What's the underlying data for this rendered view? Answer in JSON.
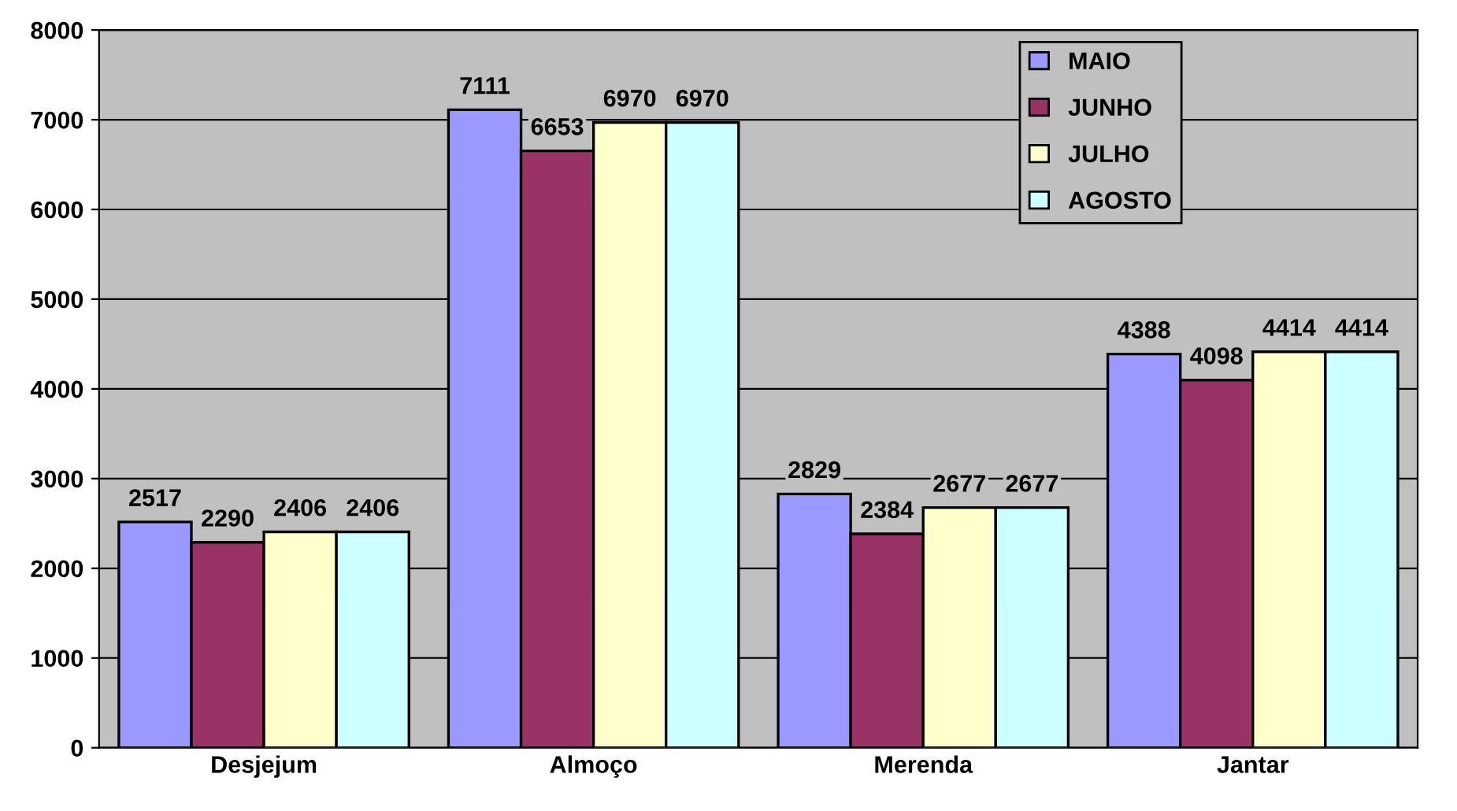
{
  "chart_data": {
    "type": "bar",
    "categories": [
      "Desjejum",
      "Almoço",
      "Merenda",
      "Jantar"
    ],
    "series": [
      {
        "name": "MAIO",
        "color": "#9999ff",
        "values": [
          2517,
          7111,
          2829,
          4388
        ]
      },
      {
        "name": "JUNHO",
        "color": "#993366",
        "values": [
          2290,
          6653,
          2384,
          4098
        ]
      },
      {
        "name": "JULHO",
        "color": "#ffffcc",
        "values": [
          2406,
          6970,
          2677,
          4414
        ]
      },
      {
        "name": "AGOSTO",
        "color": "#ccffff",
        "values": [
          2406,
          6970,
          2677,
          4414
        ]
      }
    ],
    "ylim": [
      0,
      8000
    ],
    "yticks": [
      0,
      1000,
      2000,
      3000,
      4000,
      5000,
      6000,
      7000,
      8000
    ],
    "grid": "y",
    "legend": "top right",
    "data_labels": true
  }
}
